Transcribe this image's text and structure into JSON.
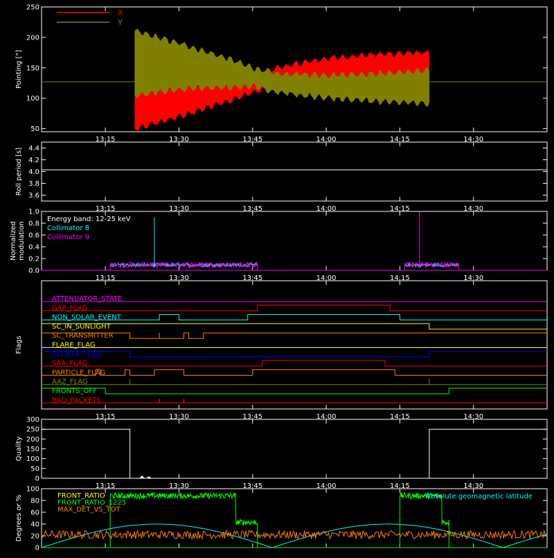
{
  "background": "#000000",
  "axis_color": "#ffffff",
  "time_axis": {
    "range": [
      "13:02",
      "14:45"
    ],
    "ticks": [
      "13:15",
      "13:30",
      "13:45",
      "14:00",
      "14:15",
      "14:30"
    ]
  },
  "chart_data": [
    {
      "type": "area",
      "id": "pointing",
      "ylabel": "Pointing [\"]",
      "ylim": [
        45,
        250
      ],
      "yticks": [
        50,
        100,
        150,
        200,
        250
      ],
      "legend": [
        {
          "name": "X",
          "color": "#ff0000"
        },
        {
          "name": "Y",
          "color": "#808000"
        }
      ],
      "flat_before": {
        "end": "13:21",
        "value": 127,
        "color": "#808000"
      },
      "flat_after": {
        "start": "14:21",
        "value": 127,
        "color": "#808000"
      },
      "series": [
        {
          "name": "X",
          "color": "#ff0000",
          "x": [
            "13:21",
            "13:30",
            "13:40",
            "13:45",
            "13:50",
            "14:00",
            "14:10",
            "14:21"
          ],
          "y_low": [
            50,
            70,
            95,
            110,
            122,
            128,
            130,
            132
          ],
          "y_high": [
            125,
            122,
            125,
            135,
            150,
            165,
            172,
            175
          ]
        },
        {
          "name": "Y",
          "color": "#808000",
          "x": [
            "13:21",
            "13:30",
            "13:40",
            "13:45",
            "13:50",
            "14:00",
            "14:10",
            "14:21"
          ],
          "y_low": [
            105,
            115,
            118,
            120,
            110,
            100,
            95,
            92
          ],
          "y_high": [
            210,
            190,
            165,
            150,
            140,
            138,
            140,
            145
          ]
        }
      ]
    },
    {
      "type": "line",
      "id": "roll",
      "ylabel": "Roll period [s]",
      "ylim": [
        3.5,
        4.5
      ],
      "yticks": [
        3.6,
        3.8,
        4.0,
        4.2,
        4.4
      ],
      "ytick_labels": [
        "3.6",
        "3.8",
        "4.0",
        "4.2",
        "4.4"
      ],
      "series": [
        {
          "color": "#ffffff",
          "x": [
            "13:02",
            "14:45"
          ],
          "y": [
            4.03,
            4.03
          ]
        }
      ]
    },
    {
      "type": "line",
      "id": "modulation",
      "ylabel": "Normalized",
      "ylabel2": "modulation",
      "ylim": [
        0,
        1.0
      ],
      "yticks": [
        0,
        0.2,
        0.4,
        0.6,
        0.8,
        1.0
      ],
      "ytick_labels": [
        "0.0",
        "0.2",
        "0.4",
        "0.6",
        "0.8",
        "1.0"
      ],
      "legend": [
        {
          "name": "Energy band: 12-25 keV",
          "color": "#ffffff"
        },
        {
          "name": "Collimator 8",
          "color": "#00ffff"
        },
        {
          "name": "Collimator 9",
          "color": "#ff00ff"
        }
      ],
      "active_intervals": [
        [
          "13:16",
          "13:46"
        ],
        [
          "14:16",
          "14:27"
        ]
      ],
      "spikes": [
        {
          "x": "13:25",
          "y": 0.9,
          "color": "#00ffff"
        },
        {
          "x": "14:19",
          "y": 1.0,
          "color": "#ff00ff"
        }
      ]
    },
    {
      "type": "step",
      "id": "flags",
      "ylabel": "Flags",
      "flags": [
        {
          "name": "ATTENUATOR_STATE",
          "color": "#ff00ff",
          "steps": [
            [
              "13:02",
              0
            ],
            [
              "14:45",
              0
            ]
          ]
        },
        {
          "name": "GAP_FLAG",
          "color": "#ff0000",
          "steps": [
            [
              "13:02",
              0
            ],
            [
              "13:46",
              1
            ],
            [
              "14:13",
              0
            ],
            [
              "14:45",
              0
            ]
          ]
        },
        {
          "name": "NON_SOLAR_EVENT",
          "color": "#00ffff",
          "steps": [
            [
              "13:02",
              0
            ],
            [
              "13:26",
              1
            ],
            [
              "13:30",
              0
            ],
            [
              "13:44",
              1
            ],
            [
              "14:15",
              0
            ],
            [
              "14:45",
              0
            ]
          ]
        },
        {
          "name": "SC_IN_SUNLIGHT",
          "color": "#ffff00",
          "steps": [
            [
              "13:02",
              1
            ],
            [
              "14:21",
              0
            ],
            [
              "14:45",
              0
            ]
          ]
        },
        {
          "name": "SC_TRANSMITTER",
          "color": "#ff8000",
          "steps": [
            [
              "13:02",
              1
            ],
            [
              "13:20",
              0
            ],
            [
              "13:26",
              1
            ],
            [
              "13:26",
              0
            ],
            [
              "13:31",
              1
            ],
            [
              "13:32",
              0
            ],
            [
              "13:35",
              1
            ],
            [
              "14:45",
              1
            ]
          ]
        },
        {
          "name": "FLARE_FLAG",
          "color": "#ffff00",
          "steps": [
            [
              "13:02",
              0
            ],
            [
              "14:45",
              0
            ]
          ]
        },
        {
          "name": "ECLIPSE_FLAG",
          "color": "#0000ff",
          "steps": [
            [
              "13:02",
              1
            ],
            [
              "13:20",
              0
            ],
            [
              "14:21",
              1
            ],
            [
              "14:45",
              1
            ]
          ]
        },
        {
          "name": "SAA_FLAG",
          "color": "#ff0000",
          "steps": [
            [
              "13:02",
              0
            ],
            [
              "13:47",
              1
            ],
            [
              "14:12",
              0
            ],
            [
              "14:45",
              0
            ]
          ]
        },
        {
          "name": "PARTICLE_FLAG",
          "color": "#ff8000",
          "steps": [
            [
              "13:02",
              0
            ],
            [
              "13:13",
              1
            ],
            [
              "13:14",
              0
            ],
            [
              "13:19",
              1
            ],
            [
              "13:20",
              0
            ],
            [
              "13:25",
              1
            ],
            [
              "13:31",
              0
            ],
            [
              "13:45",
              1
            ],
            [
              "14:14",
              0
            ],
            [
              "14:45",
              0
            ]
          ]
        },
        {
          "name": "AAZ_FLAG",
          "color": "#808000",
          "steps": [
            [
              "13:02",
              0
            ],
            [
              "13:20",
              1
            ],
            [
              "13:20",
              0
            ],
            [
              "14:21",
              1
            ],
            [
              "14:21",
              0
            ],
            [
              "14:45",
              0
            ]
          ]
        },
        {
          "name": "FRONTS_OFF",
          "color": "#00ff00",
          "steps": [
            [
              "13:02",
              1
            ],
            [
              "13:15",
              0
            ],
            [
              "14:25",
              1
            ],
            [
              "14:45",
              1
            ]
          ]
        },
        {
          "name": "BAD_PACKETS",
          "color": "#ff0000",
          "steps": [
            [
              "13:02",
              0
            ],
            [
              "14:45",
              0
            ]
          ],
          "ticks": [
            "13:26",
            "13:31"
          ]
        }
      ]
    },
    {
      "type": "line",
      "id": "quality",
      "ylabel": "Quality",
      "ylim": [
        0,
        300
      ],
      "yticks": [
        0,
        50,
        100,
        150,
        200,
        250,
        300
      ],
      "series": [
        {
          "color": "#ffffff",
          "x": [
            "13:02",
            "13:20",
            "13:20",
            "14:21",
            "14:21",
            "14:45"
          ],
          "y": [
            250,
            250,
            0,
            0,
            250,
            250
          ]
        }
      ]
    },
    {
      "type": "line",
      "id": "ratios",
      "ylabel": "Degrees or %",
      "ylim": [
        0,
        100
      ],
      "yticks": [
        0,
        20,
        40,
        60,
        80,
        100
      ],
      "legend": [
        {
          "name": "FRONT_RATIO",
          "color": "#ffff00"
        },
        {
          "name": "FRONT_RATIO_1225",
          "color": "#00ff00"
        },
        {
          "name": "MAX_DET_VS_TOT",
          "color": "#ff8000"
        }
      ],
      "right_label": {
        "text": "Absolute geomagnetic latitude",
        "color": "#00ffff"
      },
      "geolat": {
        "color": "#00ffff",
        "peaks": [
          "13:25",
          "14:12"
        ],
        "troughs": [
          "13:02",
          "13:49",
          "14:35"
        ],
        "max": 40,
        "min": 0
      },
      "front_ratio_1225": {
        "color": "#00ff00",
        "intervals": [
          [
            "13:16",
            "13:46",
            88
          ],
          [
            "14:15",
            "14:25",
            88
          ]
        ]
      },
      "max_det": {
        "color": "#ff8000",
        "level": 22
      }
    }
  ]
}
